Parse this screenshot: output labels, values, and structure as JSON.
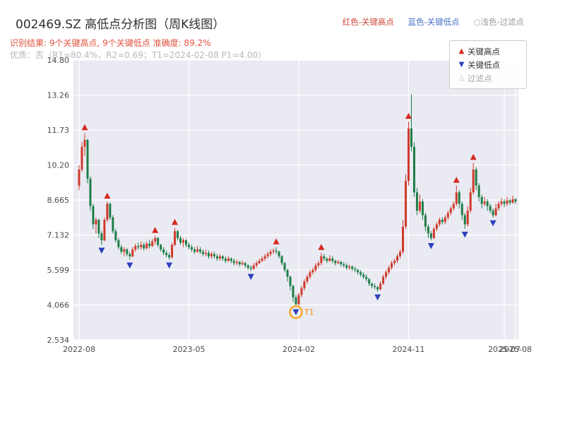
{
  "header": {
    "title": "002469.SZ 高低点分析图（周K线图）",
    "result_line": "识别结果: 9个关键高点, 9个关键低点   准确度: 89.2%",
    "quality_line": "优质：否（R1=80.4%，R2=0.69；T1=2024-02-08 P1=4.00）",
    "legend_right": [
      {
        "label": "红色-关键高点",
        "color": "#cf4a3c"
      },
      {
        "label": "蓝色-关键低点",
        "color": "#4a74c9"
      },
      {
        "label": "○浅色-过滤点",
        "color": "#9a9a9a"
      }
    ]
  },
  "legend_box": {
    "items": [
      {
        "symbol": "triangle-up",
        "label": "关键高点",
        "color": "#d6281e"
      },
      {
        "symbol": "triangle-down",
        "label": "关键低点",
        "color": "#2b3fbf"
      },
      {
        "symbol": "triangle-hollow",
        "label": "过滤点",
        "color": "#aaaaaa"
      }
    ]
  },
  "chart_data": {
    "type": "candlestick",
    "title": "002469.SZ 高低点分析图（周K线图）",
    "ylim": [
      2.534,
      14.8
    ],
    "y_ticks": [
      {
        "label": "14.80",
        "value": 14.8
      },
      {
        "label": "13.26",
        "value": 13.26
      },
      {
        "label": "11.73",
        "value": 11.73
      },
      {
        "label": "10.20",
        "value": 10.2
      },
      {
        "label": "8.665",
        "value": 8.665
      },
      {
        "label": "7.132",
        "value": 7.132
      },
      {
        "label": "5.599",
        "value": 5.599
      },
      {
        "label": "4.066",
        "value": 4.066
      },
      {
        "label": "2.534",
        "value": 2.534
      }
    ],
    "x_ticks": [
      {
        "label": "2022-08",
        "i": 0
      },
      {
        "label": "2023-05",
        "i": 39
      },
      {
        "label": "2024-02",
        "i": 78
      },
      {
        "label": "2024-11",
        "i": 117
      },
      {
        "label": "2025-07",
        "i": 151
      },
      {
        "label": "2025-08",
        "i": 155
      }
    ],
    "plot_bg": "#eaeaf2",
    "grid_color": "#ffffff",
    "up_color": "#cf3a2b",
    "down_color": "#1e7d46",
    "high_marker_color": "#d6281e",
    "low_marker_color": "#2b3fbf",
    "filtered_color": "#f5a623",
    "filtered_text_color": "#e8930c",
    "candles": [
      [
        9.3,
        10.2,
        9.1,
        10.0
      ],
      [
        10.0,
        11.2,
        9.9,
        11.0
      ],
      [
        11.0,
        11.6,
        10.6,
        11.3
      ],
      [
        11.3,
        11.35,
        9.4,
        9.6
      ],
      [
        9.6,
        9.7,
        8.2,
        8.4
      ],
      [
        8.4,
        8.5,
        7.4,
        7.6
      ],
      [
        7.6,
        7.9,
        7.2,
        7.8
      ],
      [
        7.8,
        7.85,
        7.0,
        7.2
      ],
      [
        7.2,
        7.3,
        6.7,
        6.9
      ],
      [
        6.9,
        7.9,
        6.85,
        7.8
      ],
      [
        7.8,
        8.6,
        7.7,
        8.5
      ],
      [
        8.5,
        8.55,
        7.8,
        7.9
      ],
      [
        7.9,
        8.0,
        7.2,
        7.3
      ],
      [
        7.3,
        7.4,
        6.8,
        6.9
      ],
      [
        6.9,
        7.0,
        6.5,
        6.6
      ],
      [
        6.6,
        6.7,
        6.3,
        6.4
      ],
      [
        6.4,
        6.6,
        6.2,
        6.5
      ],
      [
        6.5,
        6.55,
        6.2,
        6.3
      ],
      [
        6.3,
        6.4,
        6.05,
        6.2
      ],
      [
        6.2,
        6.6,
        6.15,
        6.5
      ],
      [
        6.5,
        6.75,
        6.4,
        6.65
      ],
      [
        6.65,
        6.8,
        6.5,
        6.6
      ],
      [
        6.6,
        6.85,
        6.5,
        6.7
      ],
      [
        6.7,
        6.8,
        6.45,
        6.55
      ],
      [
        6.55,
        6.85,
        6.5,
        6.75
      ],
      [
        6.75,
        6.9,
        6.55,
        6.65
      ],
      [
        6.65,
        6.95,
        6.6,
        6.85
      ],
      [
        6.85,
        7.1,
        6.7,
        7.0
      ],
      [
        7.0,
        7.05,
        6.6,
        6.7
      ],
      [
        6.7,
        6.75,
        6.4,
        6.5
      ],
      [
        6.5,
        6.6,
        6.25,
        6.35
      ],
      [
        6.35,
        6.45,
        6.15,
        6.25
      ],
      [
        6.25,
        6.35,
        6.05,
        6.15
      ],
      [
        6.15,
        6.8,
        6.1,
        6.7
      ],
      [
        6.7,
        7.45,
        6.65,
        7.3
      ],
      [
        7.3,
        7.35,
        6.9,
        7.0
      ],
      [
        7.0,
        7.1,
        6.7,
        6.8
      ],
      [
        6.8,
        7.0,
        6.6,
        6.9
      ],
      [
        6.9,
        6.95,
        6.6,
        6.7
      ],
      [
        6.7,
        6.8,
        6.5,
        6.6
      ],
      [
        6.6,
        6.7,
        6.4,
        6.5
      ],
      [
        6.5,
        6.6,
        6.3,
        6.4
      ],
      [
        6.4,
        6.65,
        6.35,
        6.5
      ],
      [
        6.5,
        6.6,
        6.3,
        6.4
      ],
      [
        6.4,
        6.5,
        6.2,
        6.3
      ],
      [
        6.3,
        6.5,
        6.2,
        6.35
      ],
      [
        6.35,
        6.45,
        6.1,
        6.2
      ],
      [
        6.2,
        6.4,
        6.1,
        6.3
      ],
      [
        6.3,
        6.4,
        6.1,
        6.2
      ],
      [
        6.2,
        6.3,
        6.0,
        6.1
      ],
      [
        6.1,
        6.3,
        6.0,
        6.2
      ],
      [
        6.2,
        6.25,
        6.0,
        6.1
      ],
      [
        6.1,
        6.2,
        5.9,
        6.0
      ],
      [
        6.0,
        6.2,
        5.95,
        6.1
      ],
      [
        6.1,
        6.15,
        5.9,
        6.0
      ],
      [
        6.0,
        6.1,
        5.8,
        5.9
      ],
      [
        5.9,
        6.05,
        5.8,
        5.95
      ],
      [
        5.95,
        6.0,
        5.75,
        5.85
      ],
      [
        5.85,
        6.0,
        5.8,
        5.9
      ],
      [
        5.9,
        5.95,
        5.7,
        5.8
      ],
      [
        5.8,
        5.85,
        5.6,
        5.7
      ],
      [
        5.7,
        5.8,
        5.55,
        5.65
      ],
      [
        5.65,
        5.9,
        5.6,
        5.8
      ],
      [
        5.8,
        6.0,
        5.7,
        5.9
      ],
      [
        5.9,
        6.1,
        5.85,
        6.0
      ],
      [
        6.0,
        6.2,
        5.95,
        6.1
      ],
      [
        6.1,
        6.3,
        6.0,
        6.2
      ],
      [
        6.2,
        6.4,
        6.1,
        6.3
      ],
      [
        6.3,
        6.5,
        6.2,
        6.4
      ],
      [
        6.4,
        6.55,
        6.3,
        6.45
      ],
      [
        6.45,
        6.6,
        6.3,
        6.4
      ],
      [
        6.4,
        6.45,
        6.1,
        6.2
      ],
      [
        6.2,
        6.25,
        5.8,
        5.9
      ],
      [
        5.9,
        5.95,
        5.5,
        5.6
      ],
      [
        5.6,
        5.65,
        5.1,
        5.3
      ],
      [
        5.3,
        5.35,
        4.7,
        4.9
      ],
      [
        4.9,
        4.95,
        4.2,
        4.4
      ],
      [
        4.4,
        4.5,
        4.0,
        4.1
      ],
      [
        4.1,
        4.6,
        4.05,
        4.5
      ],
      [
        4.5,
        4.9,
        4.4,
        4.8
      ],
      [
        4.8,
        5.2,
        4.7,
        5.1
      ],
      [
        5.1,
        5.4,
        5.0,
        5.3
      ],
      [
        5.3,
        5.6,
        5.2,
        5.5
      ],
      [
        5.5,
        5.7,
        5.4,
        5.6
      ],
      [
        5.6,
        5.9,
        5.5,
        5.8
      ],
      [
        5.8,
        6.0,
        5.7,
        5.9
      ],
      [
        5.9,
        6.35,
        5.8,
        6.2
      ],
      [
        6.2,
        6.3,
        6.0,
        6.1
      ],
      [
        6.1,
        6.15,
        5.9,
        6.0
      ],
      [
        6.0,
        6.25,
        5.95,
        6.1
      ],
      [
        6.1,
        6.2,
        5.9,
        6.0
      ],
      [
        6.0,
        6.05,
        5.8,
        5.9
      ],
      [
        5.9,
        6.05,
        5.85,
        5.95
      ],
      [
        5.95,
        6.0,
        5.75,
        5.85
      ],
      [
        5.85,
        5.95,
        5.7,
        5.8
      ],
      [
        5.8,
        5.9,
        5.6,
        5.7
      ],
      [
        5.7,
        5.85,
        5.6,
        5.75
      ],
      [
        5.75,
        5.8,
        5.55,
        5.65
      ],
      [
        5.65,
        5.75,
        5.5,
        5.6
      ],
      [
        5.6,
        5.65,
        5.4,
        5.5
      ],
      [
        5.5,
        5.6,
        5.3,
        5.4
      ],
      [
        5.4,
        5.5,
        5.2,
        5.3
      ],
      [
        5.3,
        5.4,
        5.1,
        5.2
      ],
      [
        5.2,
        5.25,
        4.9,
        5.0
      ],
      [
        5.0,
        5.05,
        4.8,
        4.9
      ],
      [
        4.9,
        5.0,
        4.75,
        4.85
      ],
      [
        4.85,
        4.9,
        4.65,
        4.75
      ],
      [
        4.75,
        5.1,
        4.7,
        5.0
      ],
      [
        5.0,
        5.4,
        4.95,
        5.3
      ],
      [
        5.3,
        5.6,
        5.2,
        5.5
      ],
      [
        5.5,
        5.8,
        5.4,
        5.7
      ],
      [
        5.7,
        6.0,
        5.6,
        5.9
      ],
      [
        5.9,
        6.1,
        5.8,
        6.0
      ],
      [
        6.0,
        6.3,
        5.9,
        6.2
      ],
      [
        6.2,
        6.5,
        6.1,
        6.4
      ],
      [
        6.4,
        7.8,
        6.3,
        7.5
      ],
      [
        7.5,
        9.8,
        7.4,
        9.5
      ],
      [
        9.5,
        12.1,
        9.3,
        11.8
      ],
      [
        11.8,
        13.3,
        10.8,
        11.0
      ],
      [
        11.0,
        11.2,
        8.8,
        9.0
      ],
      [
        9.0,
        9.2,
        8.0,
        8.2
      ],
      [
        8.2,
        8.9,
        8.1,
        8.6
      ],
      [
        8.6,
        8.7,
        7.8,
        8.0
      ],
      [
        8.0,
        8.1,
        7.3,
        7.5
      ],
      [
        7.5,
        7.6,
        7.0,
        7.2
      ],
      [
        7.2,
        7.3,
        6.9,
        7.0
      ],
      [
        7.0,
        7.5,
        6.95,
        7.4
      ],
      [
        7.4,
        7.7,
        7.3,
        7.6
      ],
      [
        7.6,
        7.9,
        7.5,
        7.8
      ],
      [
        7.8,
        7.9,
        7.6,
        7.7
      ],
      [
        7.7,
        8.0,
        7.6,
        7.9
      ],
      [
        7.9,
        8.2,
        7.8,
        8.1
      ],
      [
        8.1,
        8.4,
        8.0,
        8.3
      ],
      [
        8.3,
        8.6,
        8.2,
        8.5
      ],
      [
        8.5,
        9.3,
        8.4,
        9.0
      ],
      [
        9.0,
        9.1,
        8.3,
        8.5
      ],
      [
        8.5,
        8.6,
        7.8,
        8.0
      ],
      [
        8.0,
        8.1,
        7.4,
        7.6
      ],
      [
        7.6,
        8.4,
        7.5,
        8.2
      ],
      [
        8.2,
        9.2,
        8.1,
        9.0
      ],
      [
        9.0,
        10.3,
        8.9,
        10.0
      ],
      [
        10.0,
        10.1,
        9.1,
        9.3
      ],
      [
        9.3,
        9.4,
        8.6,
        8.8
      ],
      [
        8.8,
        8.9,
        8.3,
        8.5
      ],
      [
        8.5,
        8.8,
        8.4,
        8.6
      ],
      [
        8.6,
        8.7,
        8.2,
        8.4
      ],
      [
        8.4,
        8.5,
        8.1,
        8.2
      ],
      [
        8.2,
        8.3,
        7.9,
        8.0
      ],
      [
        8.0,
        8.5,
        7.95,
        8.3
      ],
      [
        8.3,
        8.6,
        8.2,
        8.5
      ],
      [
        8.5,
        8.75,
        8.4,
        8.6
      ],
      [
        8.6,
        8.7,
        8.35,
        8.5
      ],
      [
        8.5,
        8.8,
        8.4,
        8.65
      ],
      [
        8.65,
        8.7,
        8.45,
        8.55
      ],
      [
        8.55,
        8.85,
        8.5,
        8.7
      ],
      [
        8.7,
        8.75,
        8.5,
        8.6
      ]
    ],
    "key_highs": [
      {
        "i": 2,
        "price": 11.6
      },
      {
        "i": 10,
        "price": 8.6
      },
      {
        "i": 27,
        "price": 7.1
      },
      {
        "i": 34,
        "price": 7.45
      },
      {
        "i": 70,
        "price": 6.6
      },
      {
        "i": 86,
        "price": 6.35
      },
      {
        "i": 117,
        "price": 12.1
      },
      {
        "i": 134,
        "price": 9.3
      },
      {
        "i": 140,
        "price": 10.3
      }
    ],
    "key_lows": [
      {
        "i": 8,
        "price": 6.7
      },
      {
        "i": 18,
        "price": 6.05
      },
      {
        "i": 32,
        "price": 6.05
      },
      {
        "i": 61,
        "price": 5.55
      },
      {
        "i": 77,
        "price": 4.0
      },
      {
        "i": 106,
        "price": 4.65
      },
      {
        "i": 125,
        "price": 6.9
      },
      {
        "i": 137,
        "price": 7.4
      },
      {
        "i": 147,
        "price": 7.9
      }
    ],
    "filtered_point": {
      "i": 77,
      "price": 4.0,
      "label": "T1"
    }
  }
}
